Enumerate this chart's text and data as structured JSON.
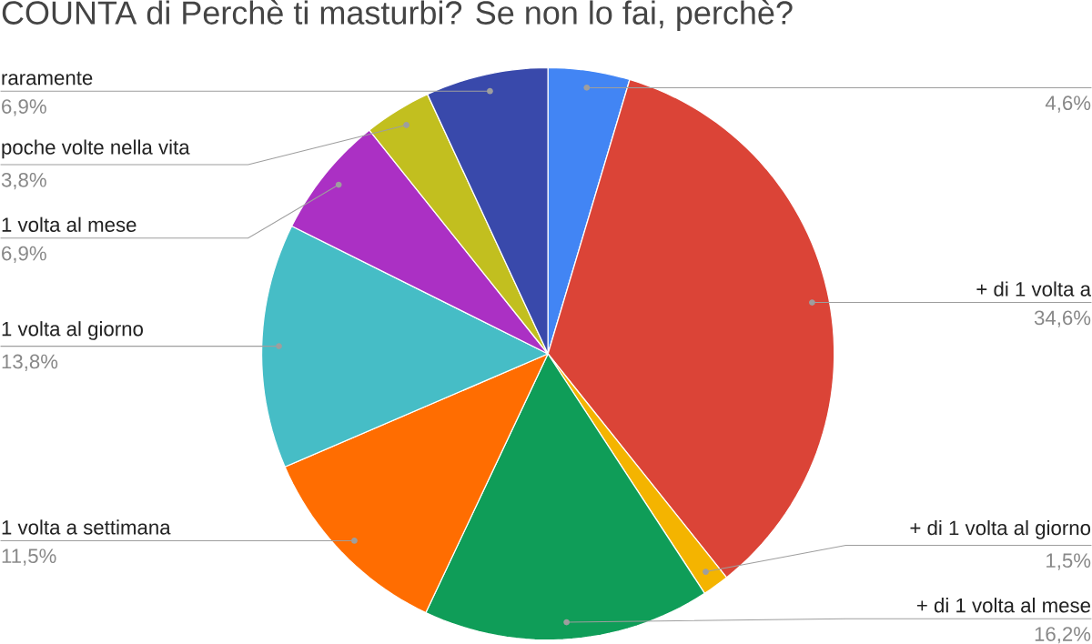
{
  "chart_data": {
    "type": "pie",
    "title": "COUNTA di Perchè ti masturbi? Se non lo fai, perchè?",
    "categories": [
      null,
      "+ di 1 volta a",
      "+ di 1 volta al giorno",
      "+ di 1 volta al mese",
      "1 volta a settimana",
      "1 volta al giorno",
      "1 volta al mese",
      "poche volte nella vita",
      "raramente"
    ],
    "values": [
      4.6,
      34.6,
      1.5,
      16.2,
      11.5,
      13.8,
      6.9,
      3.8,
      6.9
    ],
    "value_labels": [
      "4,6%",
      "34,6%",
      "1,5%",
      "16,2%",
      "11,5%",
      "13,8%",
      "6,9%",
      "3,8%",
      "6,9%"
    ],
    "colors": [
      "#4285f4",
      "#db4437",
      "#f4b400",
      "#0f9d58",
      "#ff6d01",
      "#46bdc6",
      "#ab30c4",
      "#c2bf1f",
      "#3949ab"
    ]
  }
}
